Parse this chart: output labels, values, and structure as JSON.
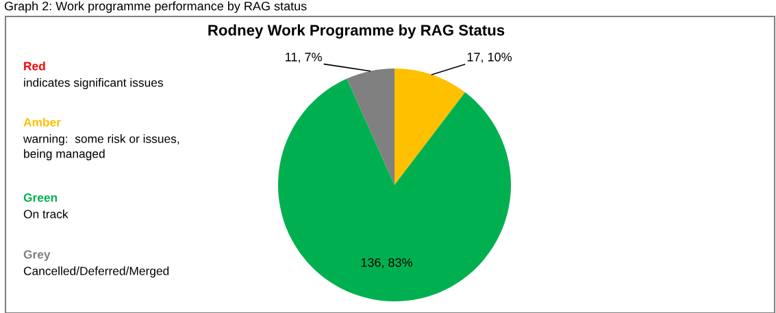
{
  "chart_data": {
    "type": "pie",
    "title": "Rodney Work Programme by RAG Status",
    "categories": [
      null,
      null,
      null
    ],
    "values": [
      17,
      136,
      11
    ],
    "colors": [
      "#ffc000",
      "#00b050",
      "#808080"
    ],
    "value_labels": [
      "17, 10%",
      "136, 83%",
      "11, 7%"
    ],
    "annotations": [
      "Graph 2: Work programme performance by RAG status",
      "Red",
      "indicates significant issues",
      "Amber",
      "warning:  some risk or issues,\nbeing managed",
      "Green",
      "On track",
      "Grey",
      "Cancelled/Deferred/Merged"
    ]
  }
}
